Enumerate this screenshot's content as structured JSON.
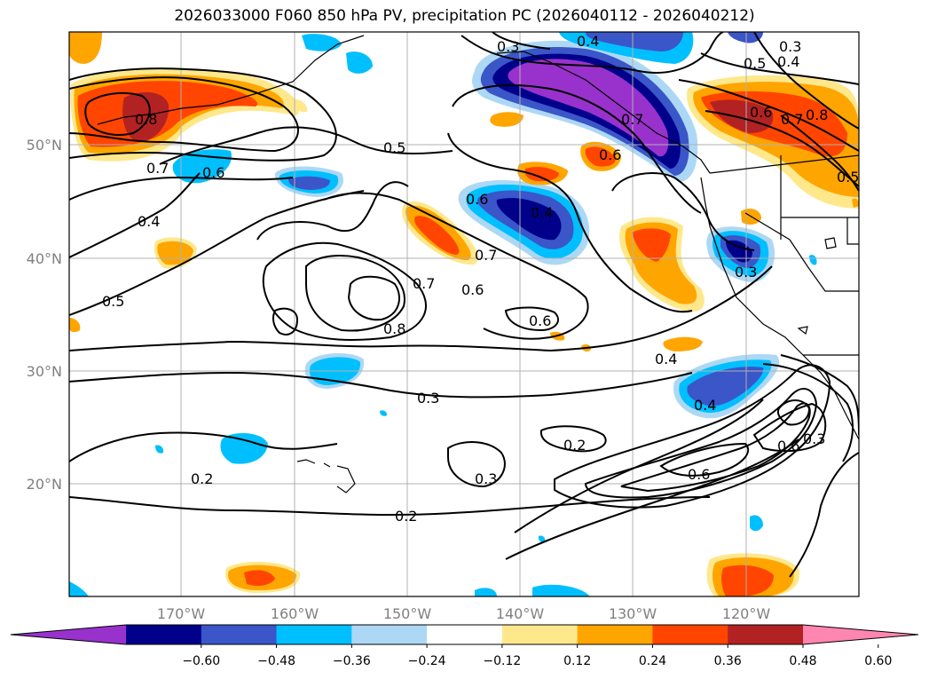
{
  "title": "2026033000 F060 850 hPa PV, precipitation PC (2026040112 - 2026040212)",
  "axes": {
    "lat_labels": [
      "50°N",
      "40°N",
      "30°N",
      "20°N"
    ],
    "lon_labels": [
      "170°W",
      "160°W",
      "150°W",
      "140°W",
      "130°W",
      "120°W"
    ]
  },
  "contour_labels": [
    "0.3",
    "0.4",
    "0.3",
    "0.5",
    "0.4",
    "0.8",
    "0.8",
    "0.6",
    "0.7",
    "0.6",
    "0.7",
    "0.5",
    "0.6",
    "0.4",
    "0.5",
    "0.6",
    "0.4",
    "0.5",
    "0.6",
    "0.7",
    "0.7",
    "0.6",
    "0.8",
    "0.7",
    "0.3",
    "0.4",
    "0.3",
    "0.2",
    "0.2",
    "0.3",
    "0.2",
    "0.6",
    "0.6",
    "0.3",
    "0.4"
  ],
  "colorbar": {
    "ticks": [
      "−0.60",
      "−0.48",
      "−0.36",
      "−0.24",
      "−0.12",
      "0.12",
      "0.24",
      "0.36",
      "0.48",
      "0.60"
    ],
    "colors": [
      "#9932cc",
      "#00008b",
      "#3a56c8",
      "#00bfff",
      "#add8f5",
      "#ffffff",
      "#ffe88c",
      "#ffa500",
      "#ff4500",
      "#b22222",
      "#ff86b0"
    ]
  },
  "palette": {
    "neg_strong": "#9932cc",
    "neg_dark": "#00008b",
    "neg_mid": "#3a56c8",
    "neg_light": "#00bfff",
    "neg_pale": "#add8f5",
    "pos_pale": "#ffe88c",
    "pos_light": "#ffa500",
    "pos_mid": "#ff4500",
    "pos_dark": "#b22222",
    "pos_strong": "#ff86b0"
  }
}
